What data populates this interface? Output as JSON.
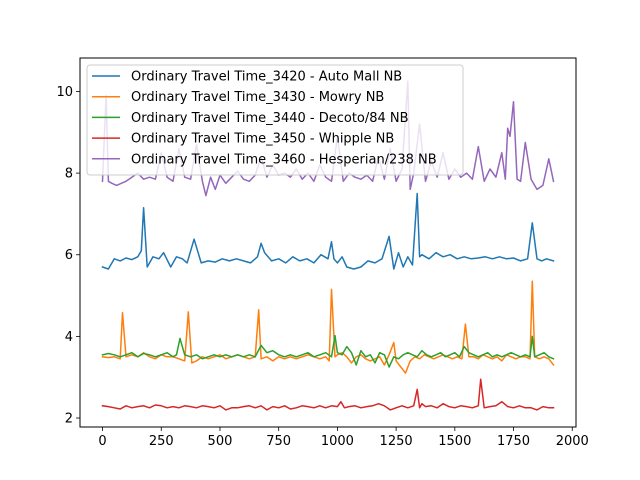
{
  "chart_data": {
    "type": "line",
    "title": "",
    "xlabel": "",
    "ylabel": "",
    "xlim": [
      -96,
      2016
    ],
    "ylim": [
      1.78,
      10.82
    ],
    "x_ticks": [
      0,
      250,
      500,
      750,
      1000,
      1250,
      1500,
      1750,
      2000
    ],
    "y_ticks": [
      2,
      4,
      6,
      8,
      10
    ],
    "legend_position": "upper-left",
    "series": [
      {
        "name": "Ordinary Travel Time_3420 - Auto Mall NB",
        "color": "#1f77b4",
        "x": [
          0,
          25,
          50,
          75,
          100,
          125,
          150,
          165,
          175,
          190,
          215,
          240,
          260,
          290,
          315,
          340,
          360,
          390,
          420,
          450,
          480,
          510,
          540,
          570,
          600,
          630,
          660,
          675,
          690,
          720,
          750,
          780,
          810,
          840,
          870,
          900,
          930,
          960,
          975,
          985,
          1000,
          1020,
          1040,
          1070,
          1100,
          1130,
          1160,
          1190,
          1220,
          1240,
          1260,
          1280,
          1300,
          1320,
          1340,
          1350,
          1360,
          1390,
          1420,
          1450,
          1480,
          1510,
          1540,
          1570,
          1600,
          1630,
          1660,
          1690,
          1720,
          1750,
          1780,
          1810,
          1830,
          1850,
          1870,
          1890,
          1920
        ],
        "y": [
          5.7,
          5.65,
          5.9,
          5.85,
          5.92,
          5.88,
          5.95,
          6.1,
          7.15,
          5.7,
          5.95,
          5.9,
          6.05,
          5.7,
          5.95,
          5.9,
          5.8,
          6.38,
          5.8,
          5.85,
          5.82,
          5.9,
          5.85,
          5.9,
          5.85,
          5.8,
          5.95,
          6.28,
          6.05,
          5.85,
          5.9,
          5.8,
          5.95,
          5.85,
          5.9,
          5.8,
          6.0,
          5.9,
          6.32,
          5.9,
          5.8,
          5.95,
          5.7,
          5.65,
          5.7,
          5.85,
          5.8,
          5.9,
          6.45,
          5.65,
          6.05,
          5.7,
          5.95,
          5.75,
          7.5,
          5.95,
          6.0,
          5.9,
          6.05,
          5.95,
          6.0,
          5.9,
          5.95,
          5.9,
          5.92,
          5.95,
          5.9,
          5.95,
          5.9,
          5.92,
          5.85,
          5.9,
          6.78,
          5.9,
          5.85,
          5.9,
          5.85
        ]
      },
      {
        "name": "Ordinary Travel Time_3430 - Mowry NB",
        "color": "#ff7f0e",
        "x": [
          0,
          25,
          50,
          75,
          85,
          100,
          125,
          150,
          175,
          200,
          225,
          250,
          275,
          300,
          325,
          350,
          365,
          380,
          400,
          425,
          450,
          475,
          500,
          525,
          550,
          575,
          600,
          625,
          650,
          665,
          675,
          700,
          725,
          750,
          775,
          800,
          825,
          850,
          875,
          900,
          925,
          950,
          965,
          975,
          990,
          1000,
          1020,
          1040,
          1060,
          1080,
          1100,
          1120,
          1140,
          1160,
          1180,
          1200,
          1220,
          1240,
          1250,
          1270,
          1290,
          1310,
          1330,
          1350,
          1370,
          1390,
          1410,
          1430,
          1450,
          1470,
          1490,
          1510,
          1530,
          1545,
          1560,
          1580,
          1600,
          1620,
          1640,
          1660,
          1680,
          1700,
          1720,
          1740,
          1760,
          1780,
          1800,
          1820,
          1830,
          1840,
          1860,
          1880,
          1900,
          1920
        ],
        "y": [
          3.5,
          3.48,
          3.5,
          3.45,
          4.58,
          3.5,
          3.55,
          3.5,
          3.6,
          3.5,
          3.45,
          3.55,
          3.5,
          3.5,
          3.45,
          3.4,
          4.6,
          3.35,
          3.4,
          3.5,
          3.45,
          3.5,
          3.55,
          3.45,
          3.5,
          3.55,
          3.5,
          3.45,
          3.5,
          4.65,
          3.45,
          3.5,
          3.4,
          3.5,
          3.45,
          3.5,
          3.45,
          3.5,
          3.55,
          3.5,
          3.45,
          3.5,
          3.4,
          5.15,
          3.5,
          3.55,
          3.6,
          3.5,
          3.35,
          3.5,
          3.55,
          3.45,
          3.4,
          3.45,
          3.5,
          3.3,
          3.55,
          3.85,
          3.4,
          3.25,
          3.1,
          3.4,
          3.5,
          3.45,
          3.55,
          3.5,
          3.45,
          3.5,
          3.55,
          3.5,
          3.45,
          3.5,
          3.45,
          4.3,
          3.5,
          3.5,
          3.45,
          3.55,
          3.5,
          3.45,
          3.5,
          3.4,
          3.55,
          3.5,
          3.45,
          3.5,
          3.5,
          3.45,
          5.35,
          3.5,
          3.45,
          3.5,
          3.45,
          3.3
        ]
      },
      {
        "name": "Ordinary Travel Time_3440 - Decoto/84 NB",
        "color": "#2ca02c",
        "x": [
          0,
          25,
          50,
          75,
          100,
          125,
          150,
          175,
          200,
          225,
          250,
          275,
          300,
          315,
          330,
          350,
          375,
          400,
          425,
          450,
          475,
          500,
          525,
          550,
          575,
          600,
          625,
          650,
          675,
          700,
          725,
          750,
          775,
          800,
          825,
          850,
          875,
          900,
          925,
          950,
          975,
          990,
          1000,
          1020,
          1040,
          1060,
          1080,
          1100,
          1120,
          1140,
          1160,
          1180,
          1200,
          1220,
          1240,
          1260,
          1280,
          1300,
          1320,
          1340,
          1360,
          1380,
          1400,
          1420,
          1440,
          1460,
          1480,
          1500,
          1520,
          1540,
          1560,
          1580,
          1600,
          1620,
          1640,
          1660,
          1680,
          1700,
          1720,
          1740,
          1760,
          1780,
          1800,
          1820,
          1830,
          1840,
          1860,
          1880,
          1900,
          1920
        ],
        "y": [
          3.55,
          3.58,
          3.55,
          3.5,
          3.55,
          3.6,
          3.5,
          3.58,
          3.55,
          3.5,
          3.55,
          3.6,
          3.5,
          3.55,
          3.95,
          3.55,
          3.5,
          3.55,
          3.45,
          3.5,
          3.55,
          3.5,
          3.55,
          3.5,
          3.55,
          3.5,
          3.55,
          3.5,
          3.78,
          3.6,
          3.65,
          3.55,
          3.5,
          3.55,
          3.5,
          3.55,
          3.6,
          3.5,
          3.55,
          3.6,
          3.5,
          4.02,
          3.6,
          3.55,
          3.75,
          3.6,
          3.3,
          3.65,
          3.5,
          3.55,
          3.35,
          3.6,
          3.55,
          3.25,
          3.5,
          3.45,
          3.55,
          3.6,
          3.55,
          3.5,
          3.65,
          3.55,
          3.5,
          3.55,
          3.6,
          3.5,
          3.55,
          3.6,
          3.5,
          3.75,
          3.6,
          3.55,
          3.5,
          3.55,
          3.6,
          3.5,
          3.55,
          3.5,
          3.55,
          3.6,
          3.55,
          3.5,
          3.55,
          3.5,
          4.0,
          3.5,
          3.55,
          3.6,
          3.5,
          3.45
        ]
      },
      {
        "name": "Ordinary Travel Time_3450 - Whipple NB",
        "color": "#d62728",
        "x": [
          0,
          25,
          50,
          75,
          100,
          125,
          150,
          175,
          200,
          225,
          250,
          275,
          300,
          325,
          350,
          375,
          400,
          425,
          450,
          475,
          500,
          525,
          550,
          575,
          600,
          625,
          650,
          675,
          700,
          725,
          750,
          775,
          800,
          825,
          850,
          875,
          900,
          925,
          950,
          975,
          1000,
          1015,
          1030,
          1050,
          1075,
          1100,
          1125,
          1150,
          1175,
          1200,
          1225,
          1250,
          1275,
          1300,
          1325,
          1340,
          1350,
          1360,
          1375,
          1400,
          1425,
          1450,
          1475,
          1500,
          1525,
          1550,
          1575,
          1600,
          1610,
          1625,
          1650,
          1675,
          1700,
          1725,
          1750,
          1775,
          1800,
          1825,
          1850,
          1875,
          1900,
          1920
        ],
        "y": [
          2.3,
          2.28,
          2.25,
          2.22,
          2.3,
          2.25,
          2.28,
          2.3,
          2.25,
          2.32,
          2.3,
          2.25,
          2.28,
          2.25,
          2.3,
          2.28,
          2.25,
          2.3,
          2.28,
          2.25,
          2.3,
          2.2,
          2.25,
          2.25,
          2.28,
          2.3,
          2.25,
          2.3,
          2.2,
          2.28,
          2.25,
          2.3,
          2.22,
          2.25,
          2.3,
          2.28,
          2.25,
          2.3,
          2.25,
          2.3,
          2.28,
          2.4,
          2.25,
          2.28,
          2.3,
          2.25,
          2.28,
          2.3,
          2.35,
          2.3,
          2.2,
          2.25,
          2.3,
          2.25,
          2.3,
          2.7,
          2.25,
          2.35,
          2.28,
          2.3,
          2.25,
          2.35,
          2.28,
          2.25,
          2.3,
          2.28,
          2.25,
          2.3,
          2.95,
          2.25,
          2.28,
          2.3,
          2.4,
          2.28,
          2.25,
          2.3,
          2.25,
          2.25,
          2.2,
          2.28,
          2.25,
          2.25
        ]
      },
      {
        "name": "Ordinary Travel Time_3460 - Hesperian/238 NB",
        "color": "#9467bd",
        "x": [
          0,
          15,
          25,
          40,
          60,
          80,
          100,
          125,
          150,
          175,
          200,
          225,
          250,
          275,
          300,
          325,
          350,
          375,
          400,
          425,
          440,
          460,
          480,
          500,
          525,
          550,
          575,
          600,
          625,
          650,
          675,
          700,
          725,
          750,
          775,
          800,
          825,
          850,
          875,
          900,
          925,
          950,
          975,
          1000,
          1025,
          1050,
          1075,
          1100,
          1125,
          1150,
          1175,
          1200,
          1225,
          1250,
          1275,
          1300,
          1310,
          1325,
          1350,
          1375,
          1400,
          1425,
          1450,
          1475,
          1500,
          1525,
          1550,
          1575,
          1600,
          1625,
          1650,
          1675,
          1700,
          1715,
          1725,
          1735,
          1750,
          1765,
          1780,
          1800,
          1825,
          1850,
          1875,
          1900,
          1920
        ],
        "y": [
          7.8,
          9.9,
          7.8,
          7.75,
          7.7,
          7.75,
          7.8,
          7.9,
          8.0,
          7.85,
          7.9,
          7.85,
          8.5,
          7.9,
          7.8,
          8.6,
          7.9,
          7.85,
          8.7,
          7.8,
          7.45,
          7.9,
          7.6,
          7.95,
          7.75,
          7.9,
          8.05,
          7.85,
          7.8,
          7.95,
          8.4,
          7.9,
          8.2,
          7.95,
          8.0,
          7.9,
          8.1,
          7.85,
          8.0,
          7.8,
          8.2,
          7.9,
          7.8,
          8.9,
          7.8,
          8.0,
          7.9,
          7.85,
          7.95,
          7.8,
          8.4,
          7.85,
          8.6,
          7.8,
          8.1,
          10.25,
          7.6,
          8.0,
          9.2,
          7.8,
          8.3,
          7.9,
          8.5,
          7.85,
          8.1,
          7.9,
          8.0,
          7.85,
          8.65,
          7.8,
          8.1,
          7.9,
          8.5,
          7.85,
          9.1,
          8.9,
          9.75,
          7.85,
          7.8,
          8.75,
          7.85,
          7.6,
          7.7,
          8.35,
          7.8
        ]
      }
    ]
  }
}
